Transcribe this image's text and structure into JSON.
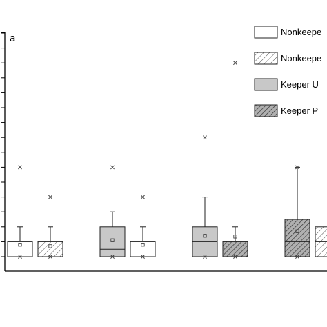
{
  "chart_data": {
    "type": "box",
    "panel_label": "a",
    "title": "",
    "xlabel": "",
    "ylabel": "",
    "ylim": [
      0,
      16
    ],
    "yticks": [
      0,
      1,
      2,
      3,
      4,
      5,
      6,
      7,
      8,
      9,
      10,
      11,
      12,
      13,
      14,
      15,
      16
    ],
    "ytick_labels_visible": false,
    "grid": false,
    "legend_position": "top-right",
    "groups": [
      {
        "boxes": [
          {
            "series": 0,
            "min": 0,
            "q1": 0,
            "median": 0,
            "q3": 1,
            "max": 2,
            "mean": 0.8,
            "outliers": [
              6.0
            ],
            "extreme_min": 0
          },
          {
            "series": 1,
            "min": 0,
            "q1": 0,
            "median": 0,
            "q3": 1,
            "max": 2,
            "mean": 0.7,
            "outliers": [
              4.0
            ],
            "extreme_min": 0
          }
        ]
      },
      {
        "boxes": [
          {
            "series": 2,
            "min": 0,
            "q1": 0,
            "median": 0.5,
            "q3": 2,
            "max": 3,
            "mean": 1.1,
            "outliers": [
              6.0
            ],
            "extreme_min": 0
          },
          {
            "series": 0,
            "min": 0,
            "q1": 0,
            "median": 0,
            "q3": 1,
            "max": 2,
            "mean": 0.8,
            "outliers": [
              4.0
            ],
            "extreme_min": 0
          }
        ]
      },
      {
        "boxes": [
          {
            "series": 2,
            "min": 0,
            "q1": 0,
            "median": 1,
            "q3": 2,
            "max": 4,
            "mean": 1.4,
            "outliers": [
              8.0
            ],
            "extreme_min": 0
          },
          {
            "series": 3,
            "min": 0,
            "q1": 0,
            "median": 0,
            "q3": 1,
            "max": 2,
            "mean": 1.35,
            "outliers": [
              13.0
            ],
            "extreme_min": 0
          }
        ]
      },
      {
        "boxes": [
          {
            "series": 3,
            "min": 0,
            "q1": 0,
            "median": 1,
            "q3": 2.5,
            "max": 6,
            "mean": 1.7,
            "outliers": [
              6.0
            ],
            "extreme_min": 0
          },
          {
            "series": 1,
            "min": 0,
            "q1": 0,
            "median": 1,
            "q3": 2,
            "max": 2,
            "mean": null,
            "outliers": [],
            "extreme_min": null
          }
        ]
      }
    ],
    "series": [
      {
        "name": "Nonkeepe",
        "fill": "#ffffff",
        "pattern": "none"
      },
      {
        "name": "Nonkeepe",
        "fill": "#ffffff",
        "pattern": "hatch-light"
      },
      {
        "name": "Keeper U",
        "fill": "#c8c8c8",
        "pattern": "none"
      },
      {
        "name": "Keeper P",
        "fill": "#a8a8a8",
        "pattern": "hatch-dark"
      }
    ],
    "colors": {
      "axis": "#000000",
      "box_stroke": "#222222",
      "marker": "#444444"
    }
  }
}
